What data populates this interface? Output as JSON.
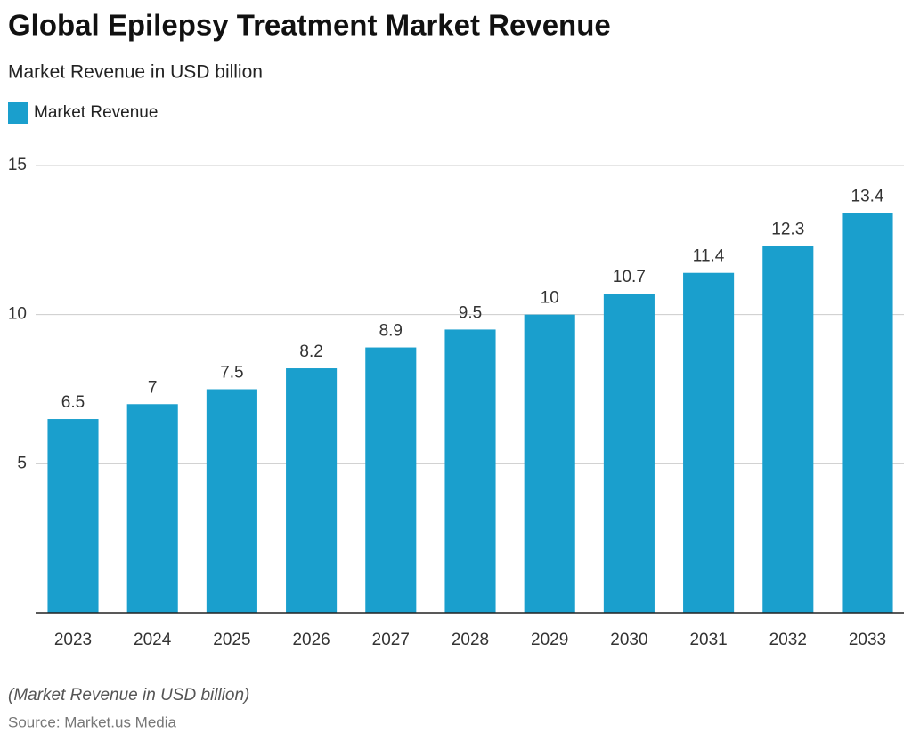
{
  "chart_data": {
    "type": "bar",
    "title": "Global Epilepsy Treatment Market Revenue",
    "subtitle": "Market Revenue in USD billion",
    "categories": [
      "2023",
      "2024",
      "2025",
      "2026",
      "2027",
      "2028",
      "2029",
      "2030",
      "2031",
      "2032",
      "2033"
    ],
    "series": [
      {
        "name": "Market Revenue",
        "color": "#1a9fcd",
        "values": [
          6.5,
          7,
          7.5,
          8.2,
          8.9,
          9.5,
          10,
          10.7,
          11.4,
          12.3,
          13.4
        ]
      }
    ],
    "ylim": [
      0,
      15
    ],
    "yticks": [
      5,
      10,
      15
    ],
    "grid": true,
    "note": "(Market Revenue in USD billion)",
    "source": "Source: Market.us Media"
  }
}
